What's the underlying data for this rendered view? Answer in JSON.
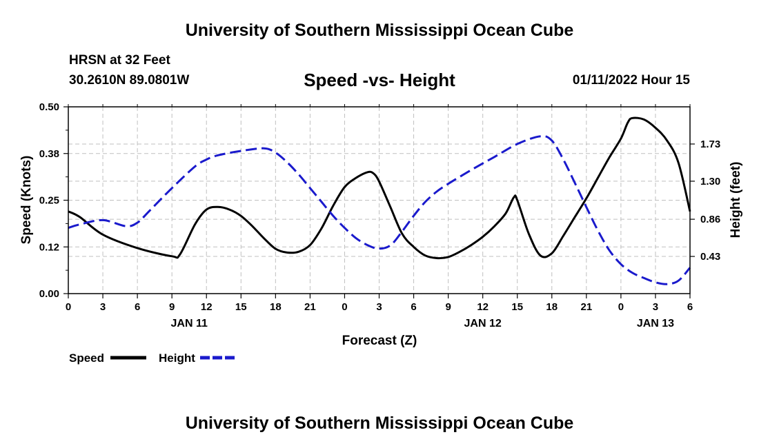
{
  "header": {
    "title": "University of Southern Mississippi Ocean Cube",
    "station": "HRSN at 32 Feet",
    "coords": "30.2610N  89.0801W",
    "run_time": "01/11/2022 Hour 15"
  },
  "footer": {
    "title": "University of Southern Mississippi Ocean Cube"
  },
  "colors": {
    "speed": "#000000",
    "height": "#1a1acc",
    "grid": "#bfbfbf"
  },
  "chart_data": {
    "type": "line",
    "title": "Speed -vs- Height",
    "xlabel": "Forecast (Z)",
    "ylabel": "Speed (Knots)",
    "y2label": "Height (feet)",
    "xlim": [
      0,
      54
    ],
    "ylim": [
      0,
      0.5
    ],
    "y2lim": [
      0,
      2.16
    ],
    "x_tick_values": [
      0,
      3,
      6,
      9,
      12,
      15,
      18,
      21,
      24,
      27,
      30,
      33,
      36,
      39,
      42,
      45,
      48,
      51,
      54
    ],
    "x_tick_labels": [
      "0",
      "3",
      "6",
      "9",
      "12",
      "15",
      "18",
      "21",
      "0",
      "3",
      "6",
      "9",
      "12",
      "15",
      "18",
      "21",
      "0",
      "3",
      "6"
    ],
    "day_labels": [
      {
        "x": 10.5,
        "label": "JAN 11"
      },
      {
        "x": 36,
        "label": "JAN 12"
      },
      {
        "x": 51,
        "label": "JAN 13"
      }
    ],
    "y_tick_labels": [
      "0.00",
      "0.12",
      "0.25",
      "0.38",
      "0.50"
    ],
    "y_tick_values": [
      0,
      0.125,
      0.25,
      0.375,
      0.5
    ],
    "y2_tick_labels": [
      "0.43",
      "0.86",
      "1.30",
      "1.73"
    ],
    "y2_tick_values": [
      0.43,
      0.86,
      1.3,
      1.73
    ],
    "legend": "bottom-left",
    "series": [
      {
        "name": "Speed",
        "axis": "left",
        "style": "solid",
        "x": [
          0,
          1,
          3,
          6,
          9,
          9.7,
          11,
          12,
          13,
          14,
          15,
          16,
          17,
          18,
          19,
          20,
          21,
          22,
          23,
          24,
          25,
          26,
          26.5,
          27,
          28,
          29,
          30,
          31,
          32,
          33,
          34,
          35,
          36,
          37,
          38,
          38.7,
          39,
          40,
          41,
          42,
          43,
          44,
          45,
          46,
          47,
          48,
          48.6,
          49,
          50,
          51,
          52,
          53,
          54
        ],
        "values": [
          0.22,
          0.205,
          0.158,
          0.122,
          0.1,
          0.105,
          0.185,
          0.225,
          0.232,
          0.225,
          0.208,
          0.18,
          0.148,
          0.12,
          0.11,
          0.112,
          0.13,
          0.175,
          0.235,
          0.285,
          0.31,
          0.325,
          0.322,
          0.3,
          0.23,
          0.16,
          0.125,
          0.102,
          0.095,
          0.098,
          0.112,
          0.13,
          0.152,
          0.18,
          0.215,
          0.258,
          0.25,
          0.16,
          0.102,
          0.108,
          0.155,
          0.205,
          0.255,
          0.31,
          0.365,
          0.415,
          0.458,
          0.47,
          0.466,
          0.444,
          0.41,
          0.35,
          0.22
        ]
      },
      {
        "name": "Height",
        "axis": "right",
        "style": "dashed",
        "x": [
          0,
          1,
          3,
          5,
          6,
          7,
          9,
          11,
          12,
          13,
          15,
          17,
          18,
          19,
          20,
          21,
          22,
          23,
          24,
          25,
          26,
          27,
          28,
          29,
          30,
          31,
          32,
          33,
          35,
          37,
          39,
          41,
          42,
          43,
          44,
          45,
          46,
          47,
          48,
          49,
          50,
          51,
          52,
          53,
          54
        ],
        "values": [
          0.76,
          0.8,
          0.85,
          0.78,
          0.82,
          0.95,
          1.22,
          1.47,
          1.55,
          1.6,
          1.65,
          1.68,
          1.63,
          1.52,
          1.38,
          1.22,
          1.06,
          0.9,
          0.76,
          0.64,
          0.56,
          0.52,
          0.56,
          0.72,
          0.9,
          1.06,
          1.18,
          1.27,
          1.43,
          1.58,
          1.73,
          1.82,
          1.77,
          1.55,
          1.28,
          1.0,
          0.73,
          0.5,
          0.34,
          0.24,
          0.18,
          0.13,
          0.11,
          0.15,
          0.3
        ]
      }
    ]
  }
}
